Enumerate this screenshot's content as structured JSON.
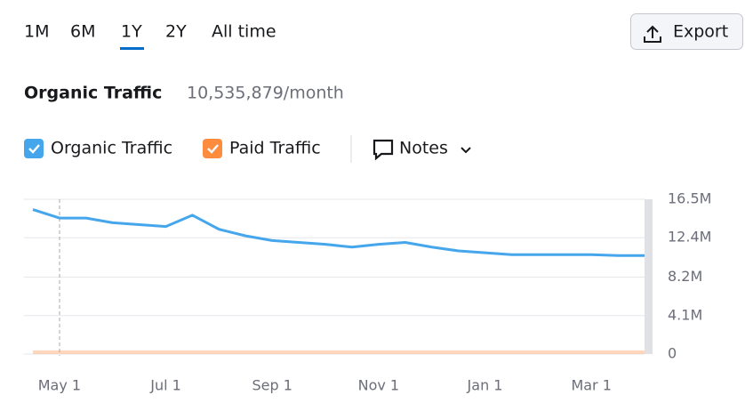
{
  "controls": {
    "ranges": [
      "1M",
      "6M",
      "1Y",
      "2Y",
      "All time"
    ],
    "export": "Export"
  },
  "header": {
    "title": "Organic Traffic",
    "value": "10,535,879/month"
  },
  "notes": "Notes",
  "chart_data": {
    "type": "line",
    "categories": [
      null,
      "May 1",
      null,
      null,
      null,
      "Jul 1",
      null,
      null,
      null,
      "Sep 1",
      null,
      null,
      null,
      "Nov 1",
      null,
      null,
      null,
      "Jan 1",
      null,
      null,
      null,
      "Mar 1",
      null,
      null
    ],
    "series": [
      {
        "name": "Organic Traffic",
        "color": "#46a6ec",
        "values": [
          15400000,
          14500000,
          14500000,
          14000000,
          13800000,
          13600000,
          14800000,
          13300000,
          12600000,
          12100000,
          11900000,
          11700000,
          11400000,
          11700000,
          11900000,
          11400000,
          11000000,
          10800000,
          10600000,
          10600000,
          10600000,
          10600000,
          10500000,
          10500000
        ]
      },
      {
        "name": "Paid Traffic",
        "color": "#fe8c3f",
        "values": [
          200000,
          200000,
          200000,
          200000,
          200000,
          200000,
          200000,
          200000,
          200000,
          200000,
          200000,
          200000,
          200000,
          200000,
          200000,
          200000,
          200000,
          200000,
          200000,
          200000,
          200000,
          200000,
          200000,
          200000
        ]
      }
    ],
    "ylim": [
      0,
      16500000
    ],
    "yticks": [
      0,
      {
        "value": 4100000,
        "label": "4.1M"
      },
      {
        "value": 8200000,
        "label": "8.2M"
      },
      {
        "value": 12400000,
        "label": "12.4M"
      },
      {
        "value": 16500000,
        "label": "16.5M"
      }
    ],
    "grid": true
  }
}
